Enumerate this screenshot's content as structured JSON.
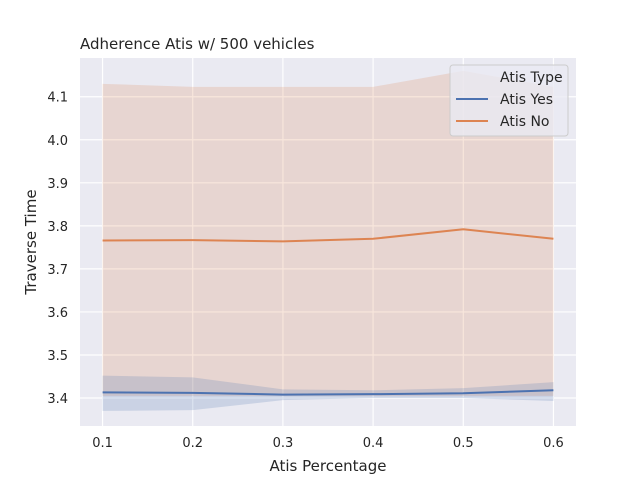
{
  "chart_data": {
    "type": "line",
    "title": "Adherence Atis w/ 500 vehicles",
    "xlabel": "Atis Percentage",
    "ylabel": "Traverse Time",
    "x": [
      0.1,
      0.2,
      0.3,
      0.4,
      0.5,
      0.6
    ],
    "xlim": [
      0.075,
      0.625
    ],
    "ylim": [
      3.335,
      4.19
    ],
    "xticks": [
      "0.1",
      "0.2",
      "0.3",
      "0.4",
      "0.5",
      "0.6"
    ],
    "yticks": [
      "3.4",
      "3.5",
      "3.6",
      "3.7",
      "3.8",
      "3.9",
      "4.0",
      "4.1"
    ],
    "grid": true,
    "legend": {
      "title": "Atis Type",
      "placement": "top-right"
    },
    "series": [
      {
        "name": "Atis Yes",
        "color": "#4c72b0",
        "values": [
          3.413,
          3.412,
          3.408,
          3.409,
          3.411,
          3.418
        ],
        "ci_lower": [
          3.37,
          3.372,
          3.395,
          3.4,
          3.4,
          3.393
        ],
        "ci_upper": [
          3.452,
          3.448,
          3.42,
          3.418,
          3.423,
          3.437
        ]
      },
      {
        "name": "Atis No",
        "color": "#dd8452",
        "values": [
          3.766,
          3.767,
          3.764,
          3.77,
          3.792,
          3.77
        ],
        "ci_lower": [
          3.405,
          3.405,
          3.405,
          3.405,
          3.405,
          3.405
        ],
        "ci_upper": [
          4.13,
          4.123,
          4.123,
          4.123,
          4.16,
          4.123
        ]
      }
    ]
  }
}
